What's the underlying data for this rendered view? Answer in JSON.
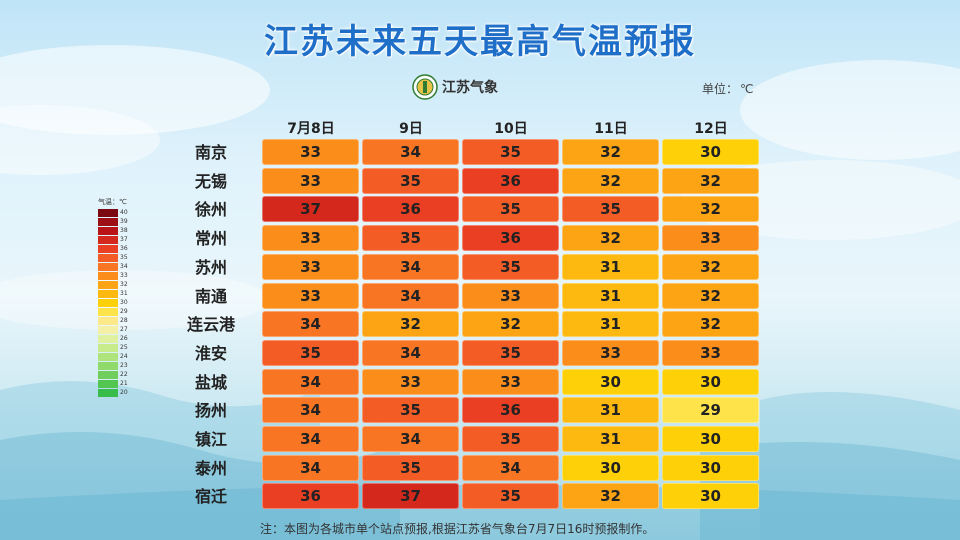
{
  "title": "江苏未来五天最高气温预报",
  "logo_text": "江苏气象",
  "unit_label": "单位：",
  "unit_value": "℃",
  "note": "注：本图为各城市单个站点预报,根据江苏省气象台7月7日16时预报制作。",
  "legend": {
    "title": "气温：℃",
    "levels": [
      40,
      39,
      38,
      37,
      36,
      35,
      34,
      33,
      32,
      31,
      30,
      29,
      28,
      27,
      26,
      25,
      24,
      23,
      22,
      21,
      20
    ],
    "colors": [
      "#7a0a0f",
      "#9c0f14",
      "#b81418",
      "#d4281c",
      "#ea3f22",
      "#f45c26",
      "#f87523",
      "#fb8d1b",
      "#fca414",
      "#fdb90f",
      "#fed007",
      "#fee34a",
      "#fde98a",
      "#f4f1a6",
      "#e0f2a0",
      "#c8ec8c",
      "#aee47b",
      "#90da6b",
      "#70cf5c",
      "#52c651",
      "#38bd4a"
    ]
  },
  "chart_data": {
    "type": "heatmap",
    "title": "江苏未来五天最高气温预报",
    "unit": "℃",
    "columns": [
      "7月8日",
      "9日",
      "10日",
      "11日",
      "12日"
    ],
    "rows": [
      "南京",
      "无锡",
      "徐州",
      "常州",
      "苏州",
      "南通",
      "连云港",
      "淮安",
      "盐城",
      "扬州",
      "镇江",
      "泰州",
      "宿迁"
    ],
    "values": [
      [
        33,
        34,
        35,
        32,
        30
      ],
      [
        33,
        35,
        36,
        32,
        32
      ],
      [
        37,
        36,
        35,
        35,
        32
      ],
      [
        33,
        35,
        36,
        32,
        33
      ],
      [
        33,
        34,
        35,
        31,
        32
      ],
      [
        33,
        34,
        33,
        31,
        32
      ],
      [
        34,
        32,
        32,
        31,
        32
      ],
      [
        35,
        34,
        35,
        33,
        33
      ],
      [
        34,
        33,
        33,
        30,
        30
      ],
      [
        34,
        35,
        36,
        31,
        29
      ],
      [
        34,
        34,
        35,
        31,
        30
      ],
      [
        34,
        35,
        34,
        30,
        30
      ],
      [
        36,
        37,
        35,
        32,
        30
      ]
    ]
  }
}
